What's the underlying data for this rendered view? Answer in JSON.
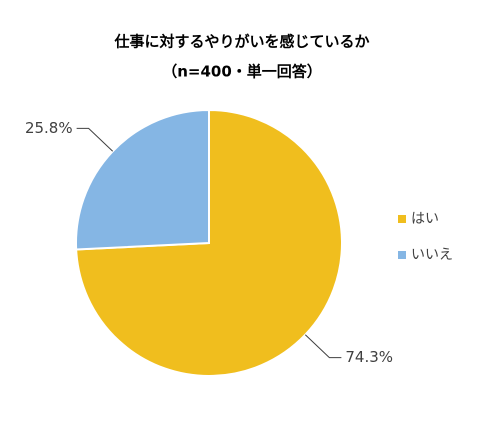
{
  "chart_data": {
    "type": "pie",
    "title": "仕事に対するやりがいを感じているか",
    "subtitle": "（n=400・単一回答）",
    "categories": [
      "はい",
      "いいえ"
    ],
    "values": [
      74.3,
      25.8
    ],
    "value_labels": [
      "74.3%",
      "25.8%"
    ],
    "colors": [
      "#F0BE1E",
      "#85B6E4"
    ],
    "legend": "right"
  }
}
